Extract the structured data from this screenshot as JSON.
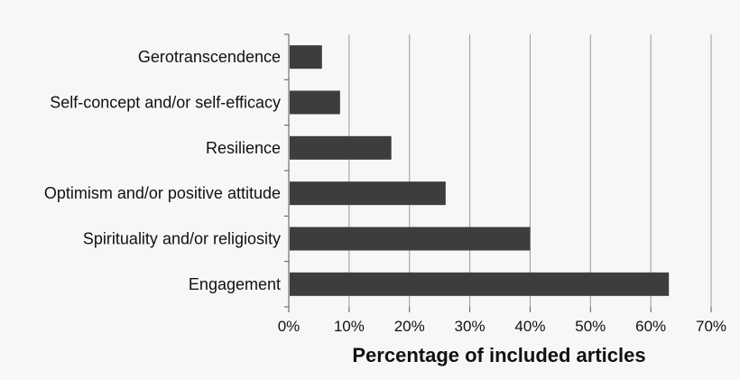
{
  "chart_data": {
    "type": "bar",
    "orientation": "horizontal",
    "title": "",
    "xlabel": "Percentage of included articles",
    "ylabel": "",
    "categories": [
      "Gerotranscendence",
      "Self-concept and/or self-efficacy",
      "Resilience",
      "Optimism and/or positive attitude",
      "Spirituality and/or religiosity",
      "Engagement"
    ],
    "values": [
      5.5,
      8.5,
      17,
      26,
      40,
      63
    ],
    "xlim": [
      0,
      70
    ],
    "xticks": [
      0,
      10,
      20,
      30,
      40,
      50,
      60,
      70
    ],
    "xtick_labels": [
      "0%",
      "10%",
      "20%",
      "30%",
      "40%",
      "50%",
      "60%",
      "70%"
    ],
    "grid": "vertical",
    "legend": "none",
    "colors": {
      "bar": "#3d3d3d",
      "grid": "#9a9a9a",
      "axis": "#555555",
      "background": "#f7f7f7"
    }
  }
}
